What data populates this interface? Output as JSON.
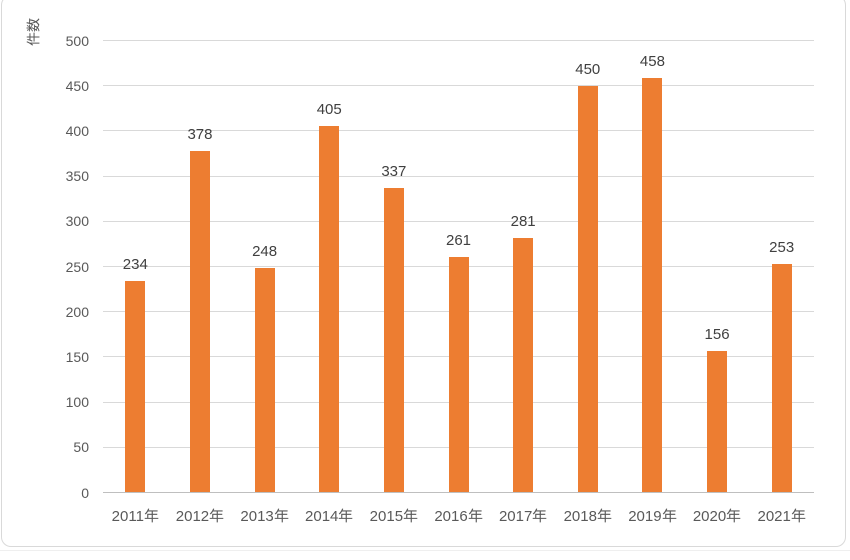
{
  "chart_data": {
    "type": "bar",
    "title": "",
    "categories": [
      "2011年",
      "2012年",
      "2013年",
      "2014年",
      "2015年",
      "2016年",
      "2017年",
      "2018年",
      "2019年",
      "2020年",
      "2021年"
    ],
    "values": [
      234,
      378,
      248,
      405,
      337,
      261,
      281,
      450,
      458,
      156,
      253
    ],
    "data_labels": [
      "234",
      "378",
      "248",
      "405",
      "337",
      "261",
      "281",
      "450",
      "458",
      "156",
      "253"
    ],
    "xlabel": "",
    "ylabel": "件数",
    "ylim": [
      0,
      500
    ],
    "ytick_step": 50,
    "y_tick_labels": [
      "0",
      "50",
      "100",
      "150",
      "200",
      "250",
      "300",
      "350",
      "400",
      "450",
      "500"
    ],
    "grid": "horizontal",
    "legend": "none",
    "bar_color": "#ED7D31"
  },
  "colors": {
    "bar": "#ED7D31",
    "gridline": "#D9D9D9",
    "axis_line": "#BFBFBF",
    "axis_text": "#595959",
    "value_label_text": "#404040",
    "chart_border": "#D9D9D9",
    "background": "#FFFFFF"
  }
}
